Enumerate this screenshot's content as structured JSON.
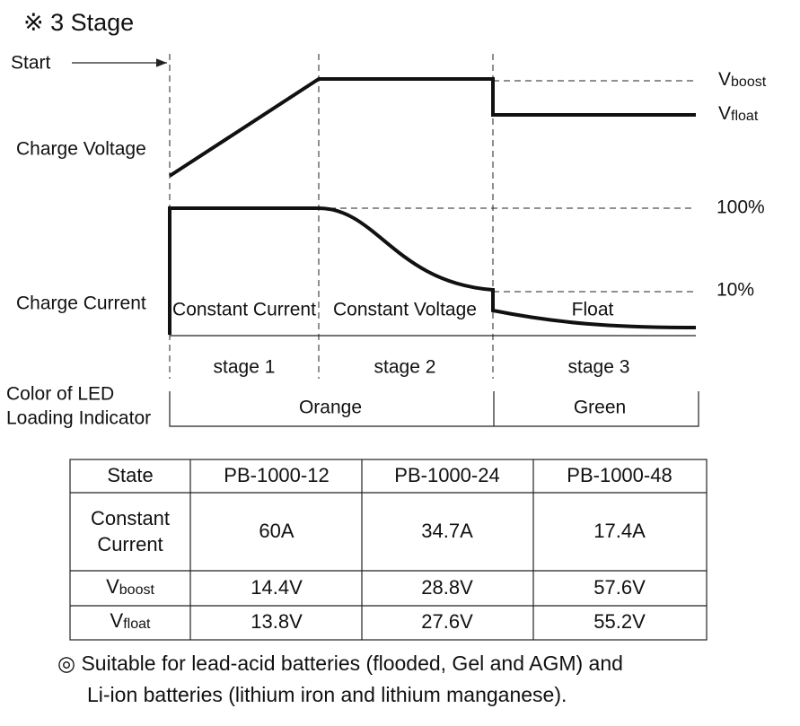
{
  "title": "※ 3 Stage",
  "diagram": {
    "start": "Start",
    "voltage_label": "Charge Voltage",
    "current_label": "Charge Current",
    "vboost": {
      "main": "V",
      "sub": "boost"
    },
    "vfloat": {
      "main": "V",
      "sub": "float"
    },
    "level_100": "100%",
    "level_10": "10%",
    "phases": [
      "Constant Current",
      "Constant Voltage",
      "Float"
    ],
    "stages": [
      "stage 1",
      "stage 2",
      "stage 3"
    ],
    "led_label": [
      "Color of LED",
      "Loading Indicator"
    ],
    "led_colors": [
      "Orange",
      "Green"
    ]
  },
  "table": {
    "header": [
      "State",
      "PB-1000-12",
      "PB-1000-24",
      "PB-1000-48"
    ],
    "rows": [
      [
        [
          "Constant",
          "Current"
        ],
        "60A",
        "34.7A",
        "17.4A"
      ],
      [
        {
          "main": "V",
          "sub": "boost"
        },
        "14.4V",
        "28.8V",
        "57.6V"
      ],
      [
        {
          "main": "V",
          "sub": "float"
        },
        "13.8V",
        "27.6V",
        "55.2V"
      ]
    ]
  },
  "note": [
    "◎ Suitable for lead-acid batteries (flooded, Gel and AGM) and",
    "Li-ion batteries (lithium iron and lithium manganese)."
  ]
}
